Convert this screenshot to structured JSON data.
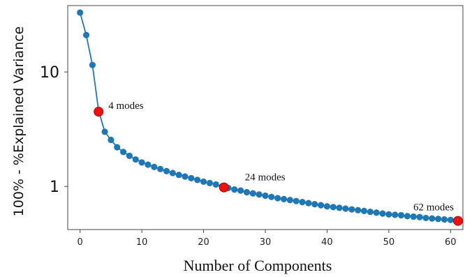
{
  "chart_data": {
    "type": "scatter",
    "xlabel": "Number of Components",
    "ylabel": "100% - %Explained Variance",
    "xlim": [
      -2,
      62
    ],
    "ylim": [
      0.42,
      38
    ],
    "y_scale": "log",
    "grid": false,
    "xticks": [
      0,
      10,
      20,
      30,
      40,
      50,
      60
    ],
    "yticks": [
      1,
      10
    ],
    "ytick_labels": [
      "1",
      "10"
    ],
    "series": [
      {
        "color": "#1f77b4",
        "x": [
          0,
          1,
          2,
          3,
          4,
          5,
          6,
          7,
          8,
          9,
          10,
          11,
          12,
          13,
          14,
          15,
          16,
          17,
          18,
          19,
          20,
          21,
          22,
          23,
          24,
          25,
          26,
          27,
          28,
          29,
          30,
          31,
          32,
          33,
          34,
          35,
          36,
          37,
          38,
          39,
          40,
          41,
          42,
          43,
          44,
          45,
          46,
          47,
          48,
          49,
          50,
          51,
          52,
          53,
          54,
          55,
          56,
          57,
          58,
          59,
          60,
          61
        ],
        "y": [
          33.0,
          21.0,
          11.5,
          4.6,
          3.0,
          2.55,
          2.2,
          2.0,
          1.85,
          1.72,
          1.62,
          1.55,
          1.48,
          1.42,
          1.36,
          1.31,
          1.26,
          1.22,
          1.18,
          1.14,
          1.1,
          1.07,
          1.04,
          1.0,
          0.97,
          0.94,
          0.92,
          0.89,
          0.87,
          0.85,
          0.83,
          0.81,
          0.79,
          0.775,
          0.76,
          0.745,
          0.73,
          0.715,
          0.7,
          0.685,
          0.67,
          0.66,
          0.65,
          0.64,
          0.63,
          0.62,
          0.61,
          0.6,
          0.59,
          0.58,
          0.57,
          0.565,
          0.56,
          0.55,
          0.545,
          0.54,
          0.53,
          0.525,
          0.52,
          0.515,
          0.51,
          0.5
        ]
      }
    ],
    "highlights": [
      {
        "x": 3,
        "y": 4.5,
        "label": "4 modes",
        "color": "#ee1111"
      },
      {
        "x": 23.3,
        "y": 0.98,
        "label": "24 modes",
        "color": "#ee1111"
      },
      {
        "x": 61.2,
        "y": 0.5,
        "label": "62 modes",
        "color": "#ee1111"
      }
    ]
  }
}
